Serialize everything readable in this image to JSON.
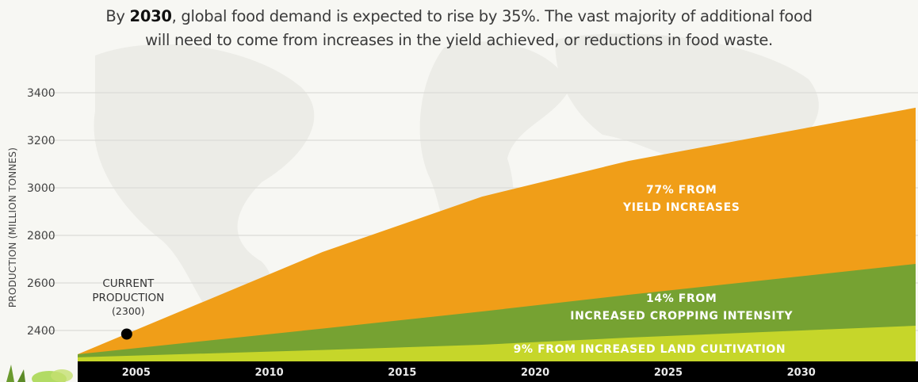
{
  "title": {
    "prefix": "By ",
    "year": "2030",
    "line1_rest": ", global food demand is expected to rise by 35%. The vast majority of additional food",
    "line2": "will need to come from increases in the yield achieved, or reductions in food waste."
  },
  "colors": {
    "yield": "#f09e18",
    "cropping": "#76a232",
    "land": "#c6d62a",
    "axis_bar": "#000000",
    "background": "#f7f7f3",
    "grid": "#dcdcd8"
  },
  "chart_data": {
    "type": "area",
    "title": "By 2030, global food demand is expected to rise by 35%.",
    "xlabel": "",
    "ylabel": "PRODUCTION (MILLION TONNES)",
    "xlim": [
      2002.8,
      2034.3
    ],
    "ylim": [
      2300,
      3400
    ],
    "x_ticks": [
      "2005",
      "2010",
      "2015",
      "2020",
      "2025",
      "2030"
    ],
    "y_ticks": [
      "2400",
      "2600",
      "2800",
      "3000",
      "3200",
      "3400"
    ],
    "grid": true,
    "stacked": true,
    "x": [
      2002.8,
      2012,
      2018,
      2023.5,
      2034.3
    ],
    "series": [
      {
        "name": "9% FROM INCREASED LAND CULTIVATION",
        "key": "land",
        "top": [
          2287,
          2318,
          2340,
          2370,
          2420
        ]
      },
      {
        "name": "14% FROM INCREASED CROPPING INTENSITY",
        "key": "cropping",
        "top": [
          2300,
          2408,
          2480,
          2550,
          2680
        ]
      },
      {
        "name": "77% FROM YIELD INCREASES",
        "key": "yield",
        "top": [
          2300,
          2730,
          2963,
          3113,
          3337
        ]
      }
    ],
    "band_labels": {
      "yield": [
        "77% FROM",
        "YIELD INCREASES"
      ],
      "cropping": [
        "14% FROM",
        "INCREASED CROPPING INTENSITY"
      ],
      "land": [
        "9% FROM INCREASED LAND CULTIVATION"
      ]
    },
    "annotation": {
      "x": 2005,
      "y": 2385,
      "lines": [
        "CURRENT",
        "PRODUCTION",
        "(2300)"
      ]
    }
  }
}
